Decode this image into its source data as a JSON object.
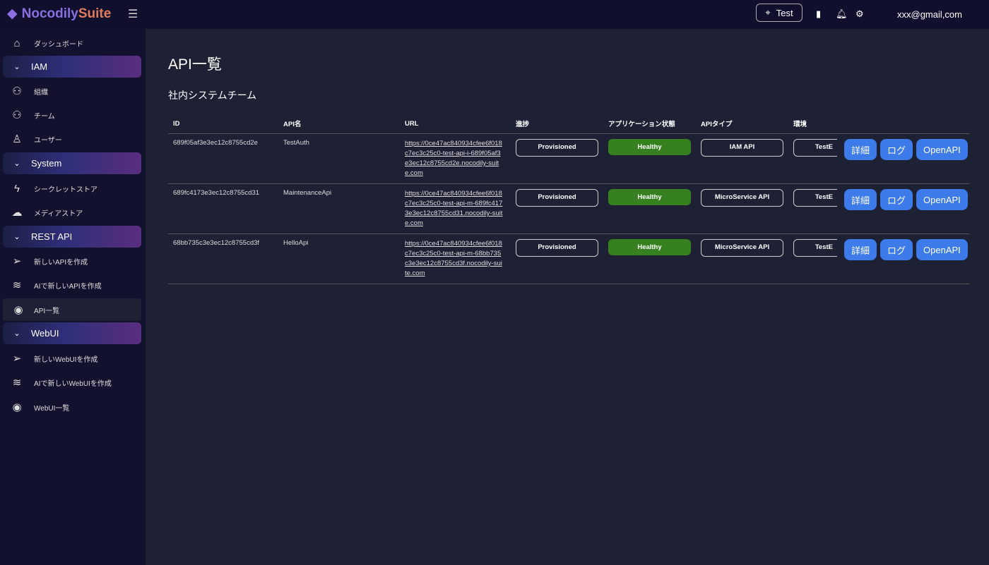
{
  "header": {
    "logo_part1": "Nocodily",
    "logo_part2": "Suite",
    "env_label": "Test",
    "email": "xxx@gmail,com"
  },
  "sidebar": {
    "items": [
      {
        "type": "item",
        "label": "ダッシュボード",
        "icon": "home-icon"
      },
      {
        "type": "head",
        "label": "IAM"
      },
      {
        "type": "item",
        "label": "組織",
        "icon": "group-icon"
      },
      {
        "type": "item",
        "label": "チーム",
        "icon": "users-icon"
      },
      {
        "type": "item",
        "label": "ユーザー",
        "icon": "user-icon"
      },
      {
        "type": "head",
        "label": "System"
      },
      {
        "type": "item",
        "label": "シークレットストア",
        "icon": "bolt-icon"
      },
      {
        "type": "item",
        "label": "メディアストア",
        "icon": "cloud-upload-icon"
      },
      {
        "type": "head",
        "label": "REST API"
      },
      {
        "type": "item",
        "label": "新しいAPIを作成",
        "icon": "send-icon"
      },
      {
        "type": "item",
        "label": "AIで新しいAPIを作成",
        "icon": "layers-icon"
      },
      {
        "type": "item",
        "label": "API一覧",
        "icon": "eye-icon",
        "active": true
      },
      {
        "type": "head",
        "label": "WebUI"
      },
      {
        "type": "item",
        "label": "新しいWebUIを作成",
        "icon": "send-icon"
      },
      {
        "type": "item",
        "label": "AIで新しいWebUIを作成",
        "icon": "layers-icon"
      },
      {
        "type": "item",
        "label": "WebUI一覧",
        "icon": "eye-icon"
      }
    ]
  },
  "main": {
    "title": "API一覧",
    "section": "社内システムチーム",
    "columns": [
      "ID",
      "API名",
      "URL",
      "進捗",
      "アプリケーション状態",
      "APIタイプ",
      "環境"
    ],
    "actions": [
      "詳細",
      "ログ",
      "OpenAPI"
    ],
    "rows": [
      {
        "id": "689f05af3e3ec12c8755cd2e",
        "name": "TestAuth",
        "url": "https://0ce47ac840934cfee6f018c7ec3c25c0-test-api-i-689f05af3e3ec12c8755cd2e.nocodily-suite.com",
        "progress": "Provisioned",
        "health": "Healthy",
        "type": "IAM API",
        "env": "TestE"
      },
      {
        "id": "689fc4173e3ec12c8755cd31",
        "name": "MaintenanceApi",
        "url": "https://0ce47ac840934cfee6f018c7ec3c25c0-test-api-m-689fc4173e3ec12c8755cd31.nocodily-suite.com",
        "progress": "Provisioned",
        "health": "Healthy",
        "type": "MicroService API",
        "env": "TestE"
      },
      {
        "id": "68bb735c3e3ec12c8755cd3f",
        "name": "HelloApi",
        "url": "https://0ce47ac840934cfee6f018c7ec3c25c0-test-api-m-68bb735c3e3ec12c8755cd3f.nocodily-suite.com",
        "progress": "Provisioned",
        "health": "Healthy",
        "type": "MicroService API",
        "env": "TestE"
      }
    ]
  },
  "colors": {
    "healthy": "#37801f",
    "action": "#3d7bea"
  }
}
